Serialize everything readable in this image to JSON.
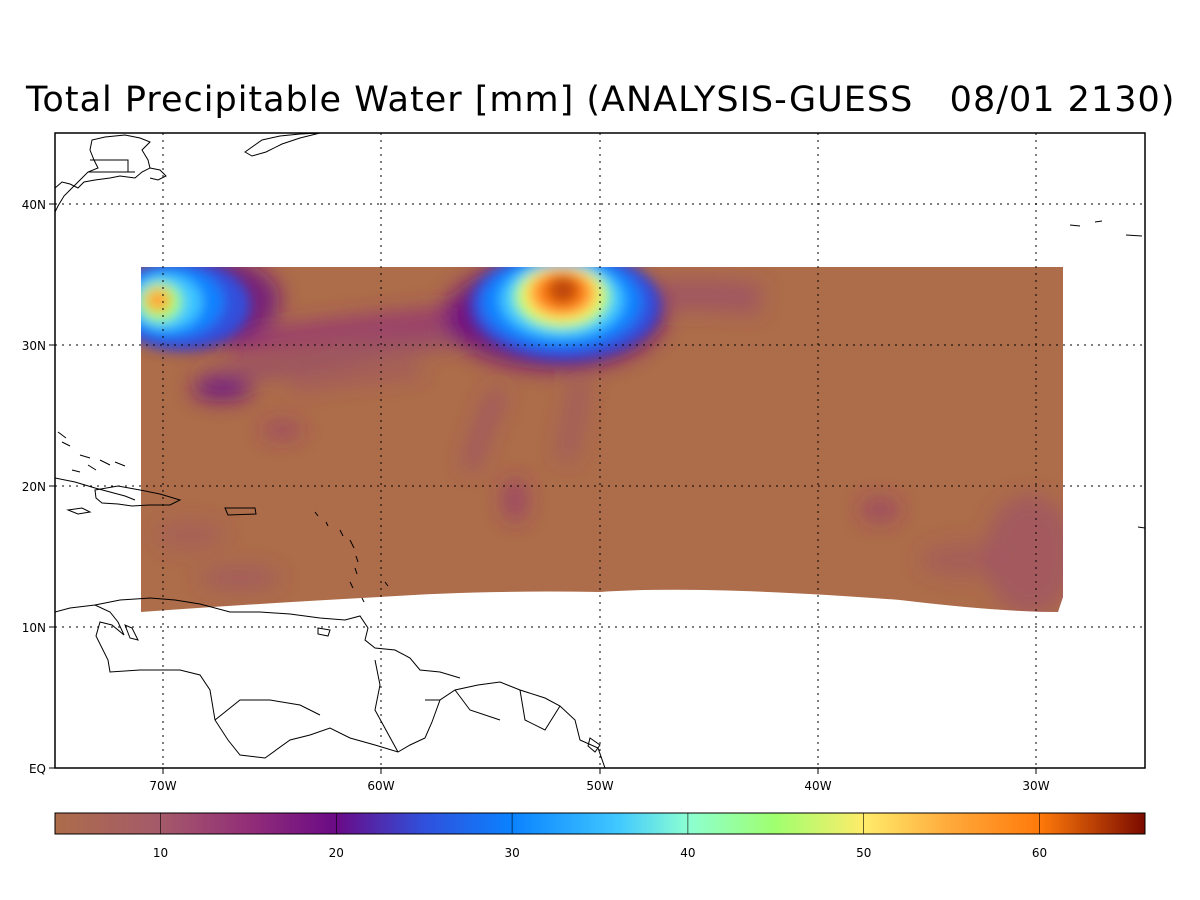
{
  "title": "Total Precipitable Water [mm] (ANALYSIS-GUESS   08/01 2130)",
  "map": {
    "lon_range": [
      -75,
      -25
    ],
    "lat_range": [
      0,
      45
    ],
    "lat_labels": [
      "EQ",
      "10N",
      "20N",
      "30N",
      "40N"
    ],
    "lon_labels": [
      "70W",
      "60W",
      "50W",
      "40W",
      "30W"
    ],
    "gridlines": "dotted",
    "data_color": "#ad6c4a"
  },
  "colorbar": {
    "range": [
      4,
      66
    ],
    "tick_labels": [
      "10",
      "20",
      "30",
      "40",
      "50",
      "60"
    ],
    "stops": [
      {
        "value": 4,
        "color": "#ad6c4a"
      },
      {
        "value": 10,
        "color": "#a55a6a"
      },
      {
        "value": 15,
        "color": "#922e78"
      },
      {
        "value": 20,
        "color": "#6a0a86"
      },
      {
        "value": 25,
        "color": "#3050dc"
      },
      {
        "value": 30,
        "color": "#0a82ff"
      },
      {
        "value": 36,
        "color": "#40c8ff"
      },
      {
        "value": 40,
        "color": "#8cffd2"
      },
      {
        "value": 45,
        "color": "#a0ff6e"
      },
      {
        "value": 50,
        "color": "#ffec6a"
      },
      {
        "value": 55,
        "color": "#ffa83a"
      },
      {
        "value": 60,
        "color": "#ff7a0a"
      },
      {
        "value": 66,
        "color": "#7a0a00"
      }
    ]
  }
}
